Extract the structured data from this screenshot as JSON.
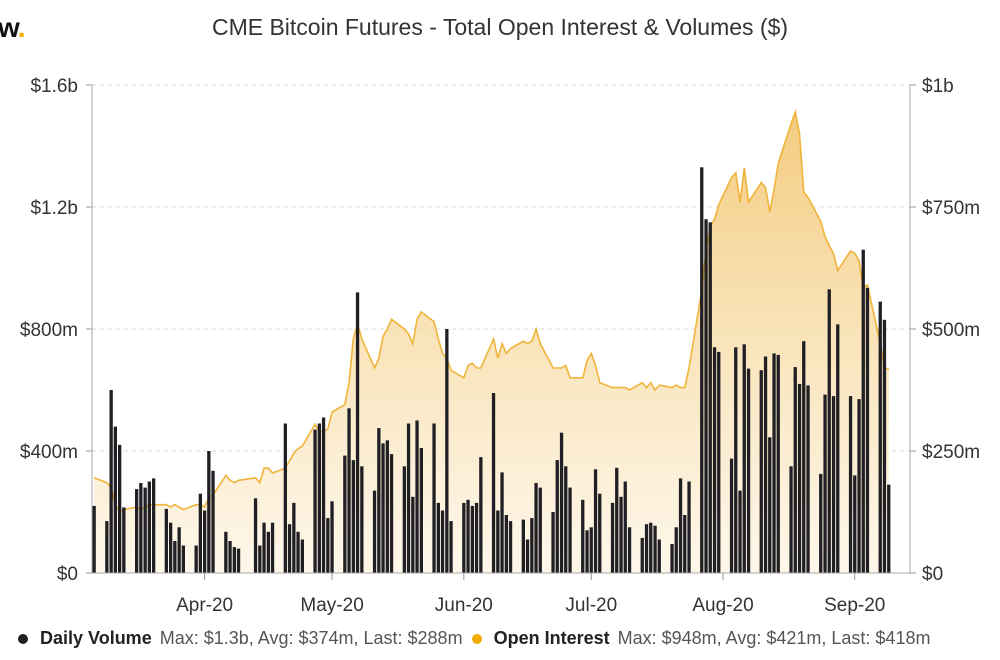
{
  "logo": {
    "text": "w",
    "dot": "."
  },
  "title": "CME Bitcoin Futures - Total Open Interest & Volumes ($)",
  "legend": {
    "volume_label": "Daily Volume",
    "volume_stats": "Max: $1.3b, Avg: $374m, Last: $288m",
    "oi_label": "Open Interest",
    "oi_stats": "Max: $948m, Avg: $421m, Last: $418m"
  },
  "colors": {
    "volume": "#1f1f24",
    "oi_line": "#f0b43a",
    "oi_fill_top": "#f3c978",
    "oi_fill_bottom": "#fdf3e0",
    "grid": "#d9d9d9"
  },
  "chart_data": {
    "type": "bar+area",
    "title": "CME Bitcoin Futures - Total Open Interest & Volumes ($)",
    "left_axis": {
      "series": "Daily Volume",
      "range": [
        0,
        1600000000
      ],
      "ticks": [
        "$0",
        "$400m",
        "$800m",
        "$1.2b",
        "$1.6b"
      ],
      "tick_values": [
        0,
        400000000,
        800000000,
        1200000000,
        1600000000
      ]
    },
    "right_axis": {
      "series": "Open Interest",
      "range": [
        0,
        1000000000
      ],
      "ticks": [
        "$0",
        "$250m",
        "$500m",
        "$750m",
        "$1b"
      ],
      "tick_values": [
        0,
        250000000,
        500000000,
        750000000,
        1000000000
      ]
    },
    "x_axis": {
      "range": [
        "2020-03-06",
        "2020-09-14"
      ],
      "tick_labels": [
        "Apr-20",
        "May-20",
        "Jun-20",
        "Jul-20",
        "Aug-20",
        "Sep-20"
      ],
      "tick_dates": [
        "2020-04-01",
        "2020-05-01",
        "2020-06-01",
        "2020-07-01",
        "2020-08-01",
        "2020-09-01"
      ]
    },
    "grid": true,
    "legend_position": "bottom",
    "series": [
      {
        "name": "Daily Volume",
        "type": "bar",
        "unit": "millions USD",
        "points": [
          [
            "2020-03-06",
            220
          ],
          [
            "2020-03-09",
            170
          ],
          [
            "2020-03-10",
            600
          ],
          [
            "2020-03-11",
            480
          ],
          [
            "2020-03-12",
            420
          ],
          [
            "2020-03-13",
            215
          ],
          [
            "2020-03-16",
            275
          ],
          [
            "2020-03-17",
            295
          ],
          [
            "2020-03-18",
            280
          ],
          [
            "2020-03-19",
            300
          ],
          [
            "2020-03-20",
            310
          ],
          [
            "2020-03-23",
            210
          ],
          [
            "2020-03-24",
            165
          ],
          [
            "2020-03-25",
            105
          ],
          [
            "2020-03-26",
            150
          ],
          [
            "2020-03-27",
            90
          ],
          [
            "2020-03-30",
            90
          ],
          [
            "2020-03-31",
            260
          ],
          [
            "2020-04-01",
            205
          ],
          [
            "2020-04-02",
            400
          ],
          [
            "2020-04-03",
            335
          ],
          [
            "2020-04-06",
            135
          ],
          [
            "2020-04-07",
            105
          ],
          [
            "2020-04-08",
            85
          ],
          [
            "2020-04-09",
            80
          ],
          [
            "2020-04-13",
            245
          ],
          [
            "2020-04-14",
            90
          ],
          [
            "2020-04-15",
            165
          ],
          [
            "2020-04-16",
            135
          ],
          [
            "2020-04-17",
            165
          ],
          [
            "2020-04-20",
            490
          ],
          [
            "2020-04-21",
            160
          ],
          [
            "2020-04-22",
            230
          ],
          [
            "2020-04-23",
            135
          ],
          [
            "2020-04-24",
            110
          ],
          [
            "2020-04-27",
            470
          ],
          [
            "2020-04-28",
            490
          ],
          [
            "2020-04-29",
            510
          ],
          [
            "2020-04-30",
            180
          ],
          [
            "2020-05-01",
            235
          ],
          [
            "2020-05-04",
            385
          ],
          [
            "2020-05-05",
            540
          ],
          [
            "2020-05-06",
            370
          ],
          [
            "2020-05-07",
            920
          ],
          [
            "2020-05-08",
            350
          ],
          [
            "2020-05-11",
            270
          ],
          [
            "2020-05-12",
            475
          ],
          [
            "2020-05-13",
            425
          ],
          [
            "2020-05-14",
            435
          ],
          [
            "2020-05-15",
            390
          ],
          [
            "2020-05-18",
            350
          ],
          [
            "2020-05-19",
            490
          ],
          [
            "2020-05-20",
            250
          ],
          [
            "2020-05-21",
            500
          ],
          [
            "2020-05-22",
            410
          ],
          [
            "2020-05-25",
            490
          ],
          [
            "2020-05-26",
            230
          ],
          [
            "2020-05-27",
            205
          ],
          [
            "2020-05-28",
            800
          ],
          [
            "2020-05-29",
            170
          ],
          [
            "2020-06-01",
            230
          ],
          [
            "2020-06-02",
            240
          ],
          [
            "2020-06-03",
            220
          ],
          [
            "2020-06-04",
            230
          ],
          [
            "2020-06-05",
            380
          ],
          [
            "2020-06-08",
            590
          ],
          [
            "2020-06-09",
            205
          ],
          [
            "2020-06-10",
            330
          ],
          [
            "2020-06-11",
            190
          ],
          [
            "2020-06-12",
            170
          ],
          [
            "2020-06-15",
            175
          ],
          [
            "2020-06-16",
            110
          ],
          [
            "2020-06-17",
            180
          ],
          [
            "2020-06-18",
            295
          ],
          [
            "2020-06-19",
            280
          ],
          [
            "2020-06-22",
            200
          ],
          [
            "2020-06-23",
            370
          ],
          [
            "2020-06-24",
            460
          ],
          [
            "2020-06-25",
            350
          ],
          [
            "2020-06-26",
            280
          ],
          [
            "2020-06-29",
            240
          ],
          [
            "2020-06-30",
            140
          ],
          [
            "2020-07-01",
            150
          ],
          [
            "2020-07-02",
            340
          ],
          [
            "2020-07-03",
            260
          ],
          [
            "2020-07-06",
            230
          ],
          [
            "2020-07-07",
            345
          ],
          [
            "2020-07-08",
            250
          ],
          [
            "2020-07-09",
            300
          ],
          [
            "2020-07-10",
            150
          ],
          [
            "2020-07-13",
            115
          ],
          [
            "2020-07-14",
            160
          ],
          [
            "2020-07-15",
            165
          ],
          [
            "2020-07-16",
            155
          ],
          [
            "2020-07-17",
            110
          ],
          [
            "2020-07-20",
            95
          ],
          [
            "2020-07-21",
            150
          ],
          [
            "2020-07-22",
            310
          ],
          [
            "2020-07-23",
            190
          ],
          [
            "2020-07-24",
            300
          ],
          [
            "2020-07-27",
            1330
          ],
          [
            "2020-07-28",
            1160
          ],
          [
            "2020-07-29",
            1150
          ],
          [
            "2020-07-30",
            740
          ],
          [
            "2020-07-31",
            725
          ],
          [
            "2020-08-03",
            375
          ],
          [
            "2020-08-04",
            740
          ],
          [
            "2020-08-05",
            270
          ],
          [
            "2020-08-06",
            750
          ],
          [
            "2020-08-07",
            670
          ],
          [
            "2020-08-10",
            665
          ],
          [
            "2020-08-11",
            710
          ],
          [
            "2020-08-12",
            445
          ],
          [
            "2020-08-13",
            720
          ],
          [
            "2020-08-14",
            715
          ],
          [
            "2020-08-17",
            350
          ],
          [
            "2020-08-18",
            675
          ],
          [
            "2020-08-19",
            620
          ],
          [
            "2020-08-20",
            760
          ],
          [
            "2020-08-21",
            615
          ],
          [
            "2020-08-24",
            325
          ],
          [
            "2020-08-25",
            585
          ],
          [
            "2020-08-26",
            930
          ],
          [
            "2020-08-27",
            580
          ],
          [
            "2020-08-28",
            815
          ],
          [
            "2020-08-31",
            580
          ],
          [
            "2020-09-01",
            320
          ],
          [
            "2020-09-02",
            570
          ],
          [
            "2020-09-03",
            1060
          ],
          [
            "2020-09-04",
            935
          ],
          [
            "2020-09-07",
            890
          ],
          [
            "2020-09-08",
            830
          ],
          [
            "2020-09-09",
            290
          ]
        ]
      },
      {
        "name": "Open Interest",
        "type": "area",
        "unit": "millions USD",
        "points": [
          [
            "2020-03-06",
            195
          ],
          [
            "2020-03-09",
            185
          ],
          [
            "2020-03-10",
            175
          ],
          [
            "2020-03-11",
            140
          ],
          [
            "2020-03-12",
            125
          ],
          [
            "2020-03-13",
            130
          ],
          [
            "2020-03-16",
            135
          ],
          [
            "2020-03-17",
            130
          ],
          [
            "2020-03-18",
            135
          ],
          [
            "2020-03-19",
            140
          ],
          [
            "2020-03-20",
            140
          ],
          [
            "2020-03-23",
            140
          ],
          [
            "2020-03-24",
            135
          ],
          [
            "2020-03-25",
            140
          ],
          [
            "2020-03-26",
            135
          ],
          [
            "2020-03-27",
            130
          ],
          [
            "2020-03-30",
            140
          ],
          [
            "2020-03-31",
            140
          ],
          [
            "2020-04-01",
            135
          ],
          [
            "2020-04-02",
            155
          ],
          [
            "2020-04-03",
            160
          ],
          [
            "2020-04-06",
            200
          ],
          [
            "2020-04-07",
            190
          ],
          [
            "2020-04-08",
            185
          ],
          [
            "2020-04-09",
            190
          ],
          [
            "2020-04-13",
            195
          ],
          [
            "2020-04-14",
            185
          ],
          [
            "2020-04-15",
            215
          ],
          [
            "2020-04-16",
            215
          ],
          [
            "2020-04-17",
            205
          ],
          [
            "2020-04-20",
            215
          ],
          [
            "2020-04-21",
            230
          ],
          [
            "2020-04-22",
            245
          ],
          [
            "2020-04-23",
            255
          ],
          [
            "2020-04-24",
            260
          ],
          [
            "2020-04-27",
            305
          ],
          [
            "2020-04-28",
            290
          ],
          [
            "2020-04-29",
            290
          ],
          [
            "2020-04-30",
            295
          ],
          [
            "2020-05-01",
            330
          ],
          [
            "2020-05-04",
            345
          ],
          [
            "2020-05-05",
            390
          ],
          [
            "2020-05-06",
            480
          ],
          [
            "2020-05-07",
            510
          ],
          [
            "2020-05-08",
            480
          ],
          [
            "2020-05-11",
            420
          ],
          [
            "2020-05-12",
            440
          ],
          [
            "2020-05-13",
            485
          ],
          [
            "2020-05-14",
            500
          ],
          [
            "2020-05-15",
            520
          ],
          [
            "2020-05-18",
            500
          ],
          [
            "2020-05-19",
            490
          ],
          [
            "2020-05-20",
            470
          ],
          [
            "2020-05-21",
            520
          ],
          [
            "2020-05-22",
            535
          ],
          [
            "2020-05-25",
            515
          ],
          [
            "2020-05-26",
            480
          ],
          [
            "2020-05-27",
            450
          ],
          [
            "2020-05-28",
            440
          ],
          [
            "2020-05-29",
            415
          ],
          [
            "2020-06-01",
            400
          ],
          [
            "2020-06-02",
            425
          ],
          [
            "2020-06-03",
            430
          ],
          [
            "2020-06-04",
            420
          ],
          [
            "2020-06-05",
            420
          ],
          [
            "2020-06-08",
            480
          ],
          [
            "2020-06-09",
            440
          ],
          [
            "2020-06-10",
            470
          ],
          [
            "2020-06-11",
            450
          ],
          [
            "2020-06-12",
            460
          ],
          [
            "2020-06-15",
            475
          ],
          [
            "2020-06-16",
            470
          ],
          [
            "2020-06-17",
            475
          ],
          [
            "2020-06-18",
            500
          ],
          [
            "2020-06-19",
            470
          ],
          [
            "2020-06-22",
            420
          ],
          [
            "2020-06-23",
            420
          ],
          [
            "2020-06-24",
            420
          ],
          [
            "2020-06-25",
            425
          ],
          [
            "2020-06-26",
            400
          ],
          [
            "2020-06-29",
            400
          ],
          [
            "2020-06-30",
            435
          ],
          [
            "2020-07-01",
            450
          ],
          [
            "2020-07-02",
            425
          ],
          [
            "2020-07-03",
            390
          ],
          [
            "2020-07-06",
            380
          ],
          [
            "2020-07-07",
            380
          ],
          [
            "2020-07-08",
            380
          ],
          [
            "2020-07-09",
            380
          ],
          [
            "2020-07-10",
            375
          ],
          [
            "2020-07-13",
            390
          ],
          [
            "2020-07-14",
            380
          ],
          [
            "2020-07-15",
            390
          ],
          [
            "2020-07-16",
            375
          ],
          [
            "2020-07-17",
            385
          ],
          [
            "2020-07-20",
            380
          ],
          [
            "2020-07-21",
            385
          ],
          [
            "2020-07-22",
            380
          ],
          [
            "2020-07-23",
            380
          ],
          [
            "2020-07-24",
            420
          ],
          [
            "2020-07-27",
            580
          ],
          [
            "2020-07-28",
            660
          ],
          [
            "2020-07-29",
            710
          ],
          [
            "2020-07-30",
            725
          ],
          [
            "2020-07-31",
            755
          ],
          [
            "2020-08-03",
            810
          ],
          [
            "2020-08-04",
            820
          ],
          [
            "2020-08-05",
            760
          ],
          [
            "2020-08-06",
            830
          ],
          [
            "2020-08-07",
            760
          ],
          [
            "2020-08-10",
            800
          ],
          [
            "2020-08-11",
            790
          ],
          [
            "2020-08-12",
            740
          ],
          [
            "2020-08-13",
            785
          ],
          [
            "2020-08-14",
            840
          ],
          [
            "2020-08-17",
            920
          ],
          [
            "2020-08-18",
            945
          ],
          [
            "2020-08-19",
            900
          ],
          [
            "2020-08-20",
            780
          ],
          [
            "2020-08-21",
            770
          ],
          [
            "2020-08-24",
            720
          ],
          [
            "2020-08-25",
            690
          ],
          [
            "2020-08-26",
            670
          ],
          [
            "2020-08-27",
            655
          ],
          [
            "2020-08-28",
            620
          ],
          [
            "2020-08-31",
            660
          ],
          [
            "2020-09-01",
            655
          ],
          [
            "2020-09-02",
            640
          ],
          [
            "2020-09-03",
            585
          ],
          [
            "2020-09-04",
            590
          ],
          [
            "2020-09-07",
            470
          ],
          [
            "2020-09-08",
            420
          ],
          [
            "2020-09-09",
            418
          ]
        ]
      }
    ]
  }
}
